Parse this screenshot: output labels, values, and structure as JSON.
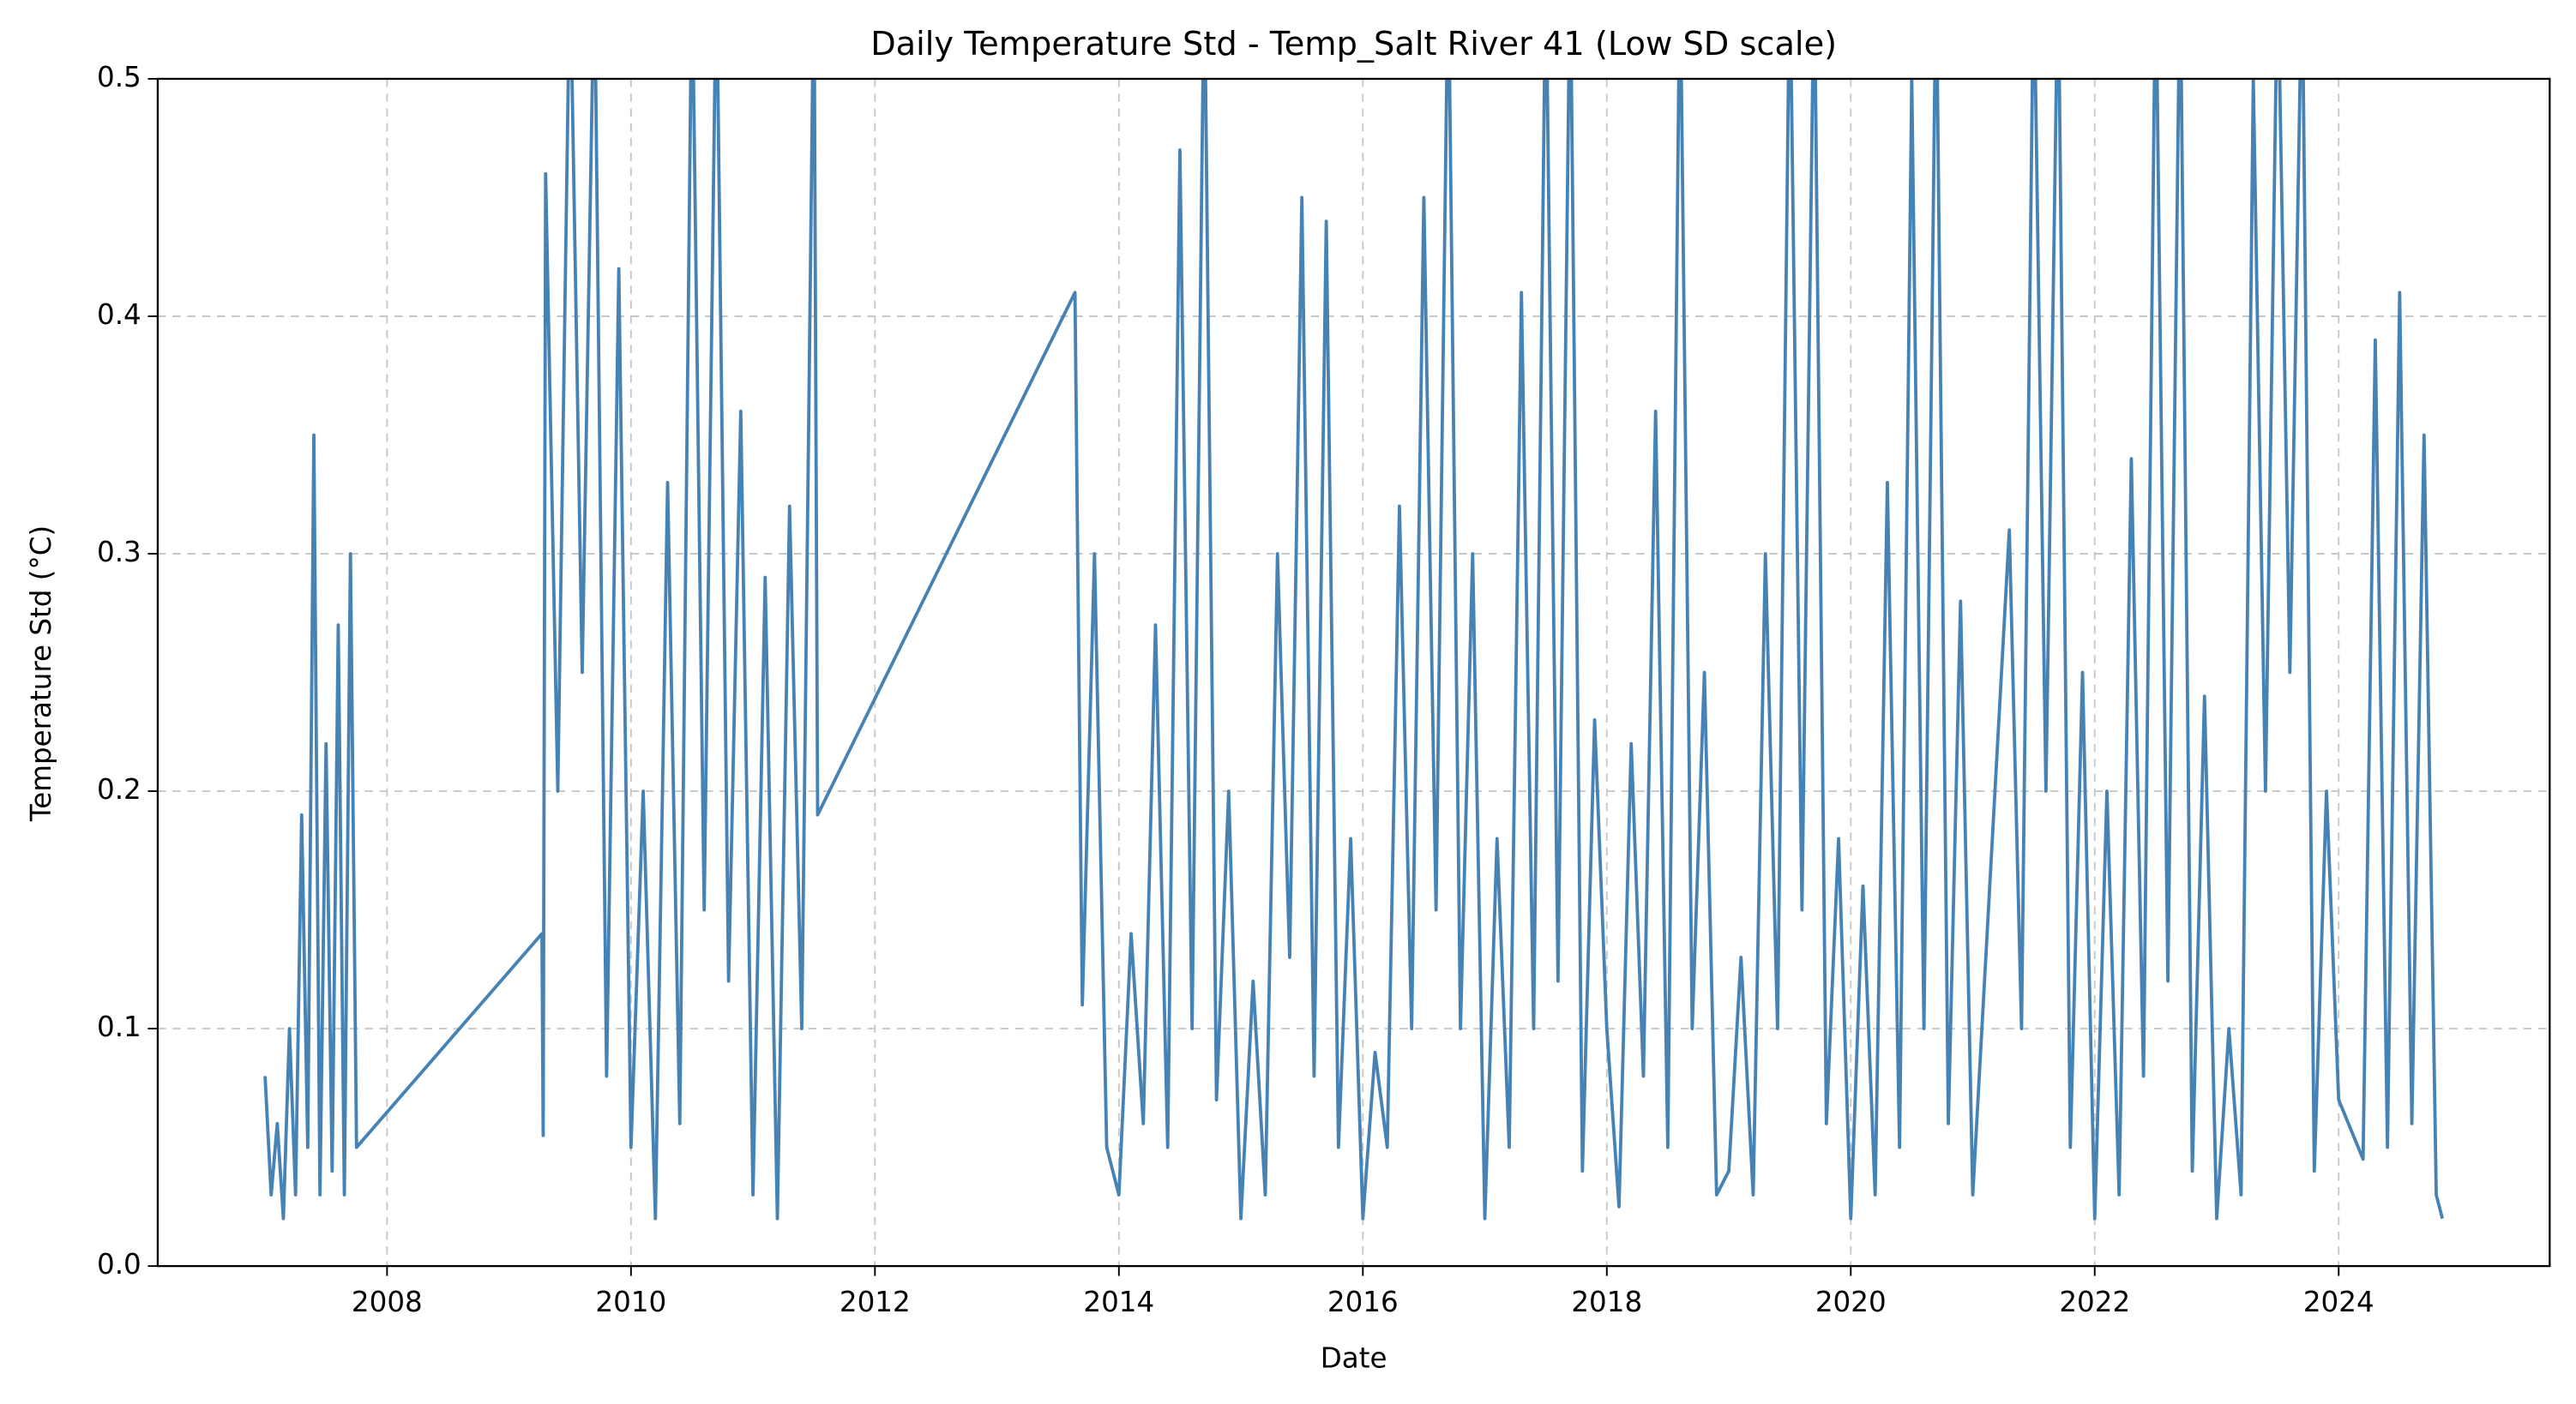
{
  "chart_data": {
    "type": "line",
    "title": "Daily Temperature Std - Temp_Salt River 41 (Low SD scale)",
    "x_label": "Date",
    "y_label": "Temperature Std (°C)",
    "xlim": [
      2006.12,
      2025.73
    ],
    "ylim": [
      0,
      0.5
    ],
    "xticks": [
      2008,
      2010,
      2012,
      2014,
      2016,
      2018,
      2020,
      2022,
      2024
    ],
    "yticks": [
      {
        "value": 0,
        "label": "0.0"
      },
      0.1,
      0.2,
      0.3,
      0.4,
      0.5
    ],
    "grid": true,
    "series": [
      {
        "name": "Temp_Salt River 41",
        "color": "#4682b4",
        "x": [
          2007.0,
          2007.05,
          2007.1,
          2007.15,
          2007.2,
          2007.25,
          2007.3,
          2007.35,
          2007.4,
          2007.45,
          2007.5,
          2007.55,
          2007.6,
          2007.65,
          2007.7,
          2007.75,
          2009.27,
          2009.28,
          2009.3,
          2009.4,
          2009.5,
          2009.6,
          2009.7,
          2009.8,
          2009.9,
          2010.0,
          2010.1,
          2010.2,
          2010.3,
          2010.4,
          2010.5,
          2010.6,
          2010.7,
          2010.8,
          2010.9,
          2011.0,
          2011.1,
          2011.2,
          2011.3,
          2011.4,
          2011.5,
          2011.53,
          2013.64,
          2013.7,
          2013.8,
          2013.9,
          2014.0,
          2014.1,
          2014.2,
          2014.3,
          2014.4,
          2014.5,
          2014.6,
          2014.7,
          2014.8,
          2014.9,
          2015.0,
          2015.1,
          2015.2,
          2015.3,
          2015.4,
          2015.5,
          2015.6,
          2015.7,
          2015.8,
          2015.9,
          2016.0,
          2016.1,
          2016.2,
          2016.3,
          2016.4,
          2016.5,
          2016.6,
          2016.7,
          2016.8,
          2016.9,
          2017.0,
          2017.1,
          2017.2,
          2017.3,
          2017.4,
          2017.5,
          2017.6,
          2017.7,
          2017.8,
          2017.9,
          2018.0,
          2018.1,
          2018.2,
          2018.3,
          2018.4,
          2018.5,
          2018.6,
          2018.7,
          2018.8,
          2018.9,
          2019.0,
          2019.1,
          2019.2,
          2019.3,
          2019.4,
          2019.5,
          2019.6,
          2019.7,
          2019.8,
          2019.9,
          2020.0,
          2020.1,
          2020.2,
          2020.3,
          2020.4,
          2020.5,
          2020.6,
          2020.7,
          2020.8,
          2020.9,
          2021.0,
          2021.3,
          2021.4,
          2021.5,
          2021.6,
          2021.7,
          2021.8,
          2021.9,
          2022.0,
          2022.1,
          2022.2,
          2022.3,
          2022.4,
          2022.5,
          2022.6,
          2022.7,
          2022.8,
          2022.9,
          2023.0,
          2023.1,
          2023.2,
          2023.3,
          2023.4,
          2023.5,
          2023.6,
          2023.7,
          2023.8,
          2023.9,
          2024.0,
          2024.2,
          2024.3,
          2024.4,
          2024.5,
          2024.6,
          2024.7,
          2024.8,
          2024.85
        ],
        "values": [
          0.08,
          0.03,
          0.06,
          0.02,
          0.1,
          0.03,
          0.19,
          0.05,
          0.35,
          0.03,
          0.22,
          0.04,
          0.27,
          0.03,
          0.3,
          0.05,
          0.14,
          0.055,
          0.46,
          0.2,
          0.55,
          0.25,
          0.55,
          0.08,
          0.42,
          0.05,
          0.2,
          0.02,
          0.33,
          0.06,
          0.55,
          0.15,
          0.55,
          0.12,
          0.36,
          0.03,
          0.29,
          0.02,
          0.32,
          0.1,
          0.55,
          0.19,
          0.41,
          0.11,
          0.3,
          0.05,
          0.03,
          0.14,
          0.06,
          0.27,
          0.05,
          0.47,
          0.1,
          0.55,
          0.07,
          0.2,
          0.02,
          0.12,
          0.03,
          0.3,
          0.13,
          0.45,
          0.08,
          0.44,
          0.05,
          0.18,
          0.02,
          0.09,
          0.05,
          0.32,
          0.1,
          0.45,
          0.15,
          0.55,
          0.1,
          0.3,
          0.02,
          0.18,
          0.05,
          0.41,
          0.1,
          0.55,
          0.12,
          0.55,
          0.04,
          0.23,
          0.1,
          0.025,
          0.22,
          0.08,
          0.36,
          0.05,
          0.55,
          0.1,
          0.25,
          0.03,
          0.04,
          0.13,
          0.03,
          0.3,
          0.1,
          0.55,
          0.15,
          0.55,
          0.06,
          0.18,
          0.02,
          0.16,
          0.03,
          0.33,
          0.05,
          0.5,
          0.1,
          0.55,
          0.06,
          0.28,
          0.03,
          0.31,
          0.1,
          0.55,
          0.2,
          0.55,
          0.05,
          0.25,
          0.02,
          0.2,
          0.03,
          0.34,
          0.08,
          0.55,
          0.12,
          0.55,
          0.04,
          0.24,
          0.02,
          0.1,
          0.03,
          0.5,
          0.2,
          0.55,
          0.25,
          0.55,
          0.04,
          0.2,
          0.07,
          0.045,
          0.39,
          0.05,
          0.41,
          0.06,
          0.35,
          0.03,
          0.02
        ]
      }
    ]
  }
}
